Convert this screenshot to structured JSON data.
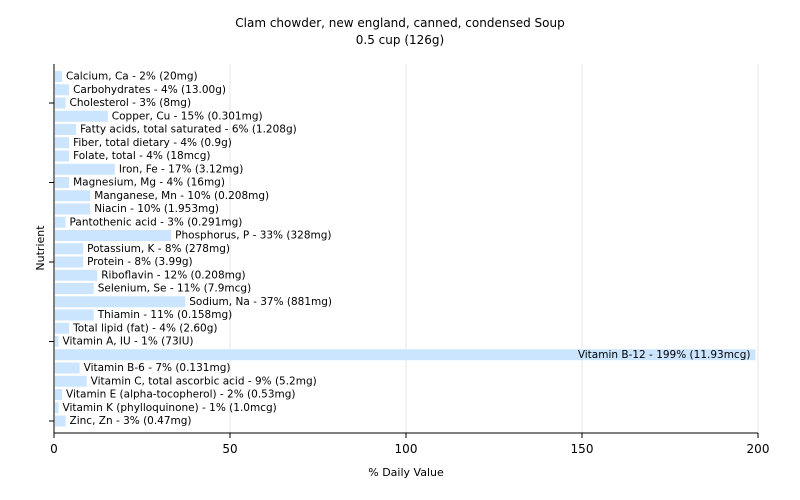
{
  "chart_data": {
    "type": "bar",
    "orientation": "horizontal",
    "title": "Clam chowder, new england, canned, condensed Soup",
    "subtitle": "0.5 cup (126g)",
    "xlabel": "% Daily Value",
    "ylabel": "Nutrient",
    "xlim": [
      0,
      200
    ],
    "xticks": [
      0,
      50,
      100,
      150,
      200
    ],
    "grid": true,
    "bar_color": "#cce5ff",
    "grid_color": "#e6e6e6",
    "categories": [
      "Calcium, Ca - 2% (20mg)",
      "Carbohydrates - 4% (13.00g)",
      "Cholesterol - 3% (8mg)",
      "Copper, Cu - 15% (0.301mg)",
      "Fatty acids, total saturated - 6% (1.208g)",
      "Fiber, total dietary - 4% (0.9g)",
      "Folate, total - 4% (18mcg)",
      "Iron, Fe - 17% (3.12mg)",
      "Magnesium, Mg - 4% (16mg)",
      "Manganese, Mn - 10% (0.208mg)",
      "Niacin - 10% (1.953mg)",
      "Pantothenic acid - 3% (0.291mg)",
      "Phosphorus, P - 33% (328mg)",
      "Potassium, K - 8% (278mg)",
      "Protein - 8% (3.99g)",
      "Riboflavin - 12% (0.208mg)",
      "Selenium, Se - 11% (7.9mcg)",
      "Sodium, Na - 37% (881mg)",
      "Thiamin - 11% (0.158mg)",
      "Total lipid (fat) - 4% (2.60g)",
      "Vitamin A, IU - 1% (73IU)",
      "Vitamin B-12 - 199% (11.93mcg)",
      "Vitamin B-6 - 7% (0.131mg)",
      "Vitamin C, total ascorbic acid - 9% (5.2mg)",
      "Vitamin E (alpha-tocopherol) - 2% (0.53mg)",
      "Vitamin K (phylloquinone) - 1% (1.0mcg)",
      "Zinc, Zn - 3% (0.47mg)"
    ],
    "values": [
      2,
      4,
      3,
      15,
      6,
      4,
      4,
      17,
      4,
      10,
      10,
      3,
      33,
      8,
      8,
      12,
      11,
      37,
      11,
      4,
      1,
      199,
      7,
      9,
      2,
      1,
      3
    ]
  }
}
